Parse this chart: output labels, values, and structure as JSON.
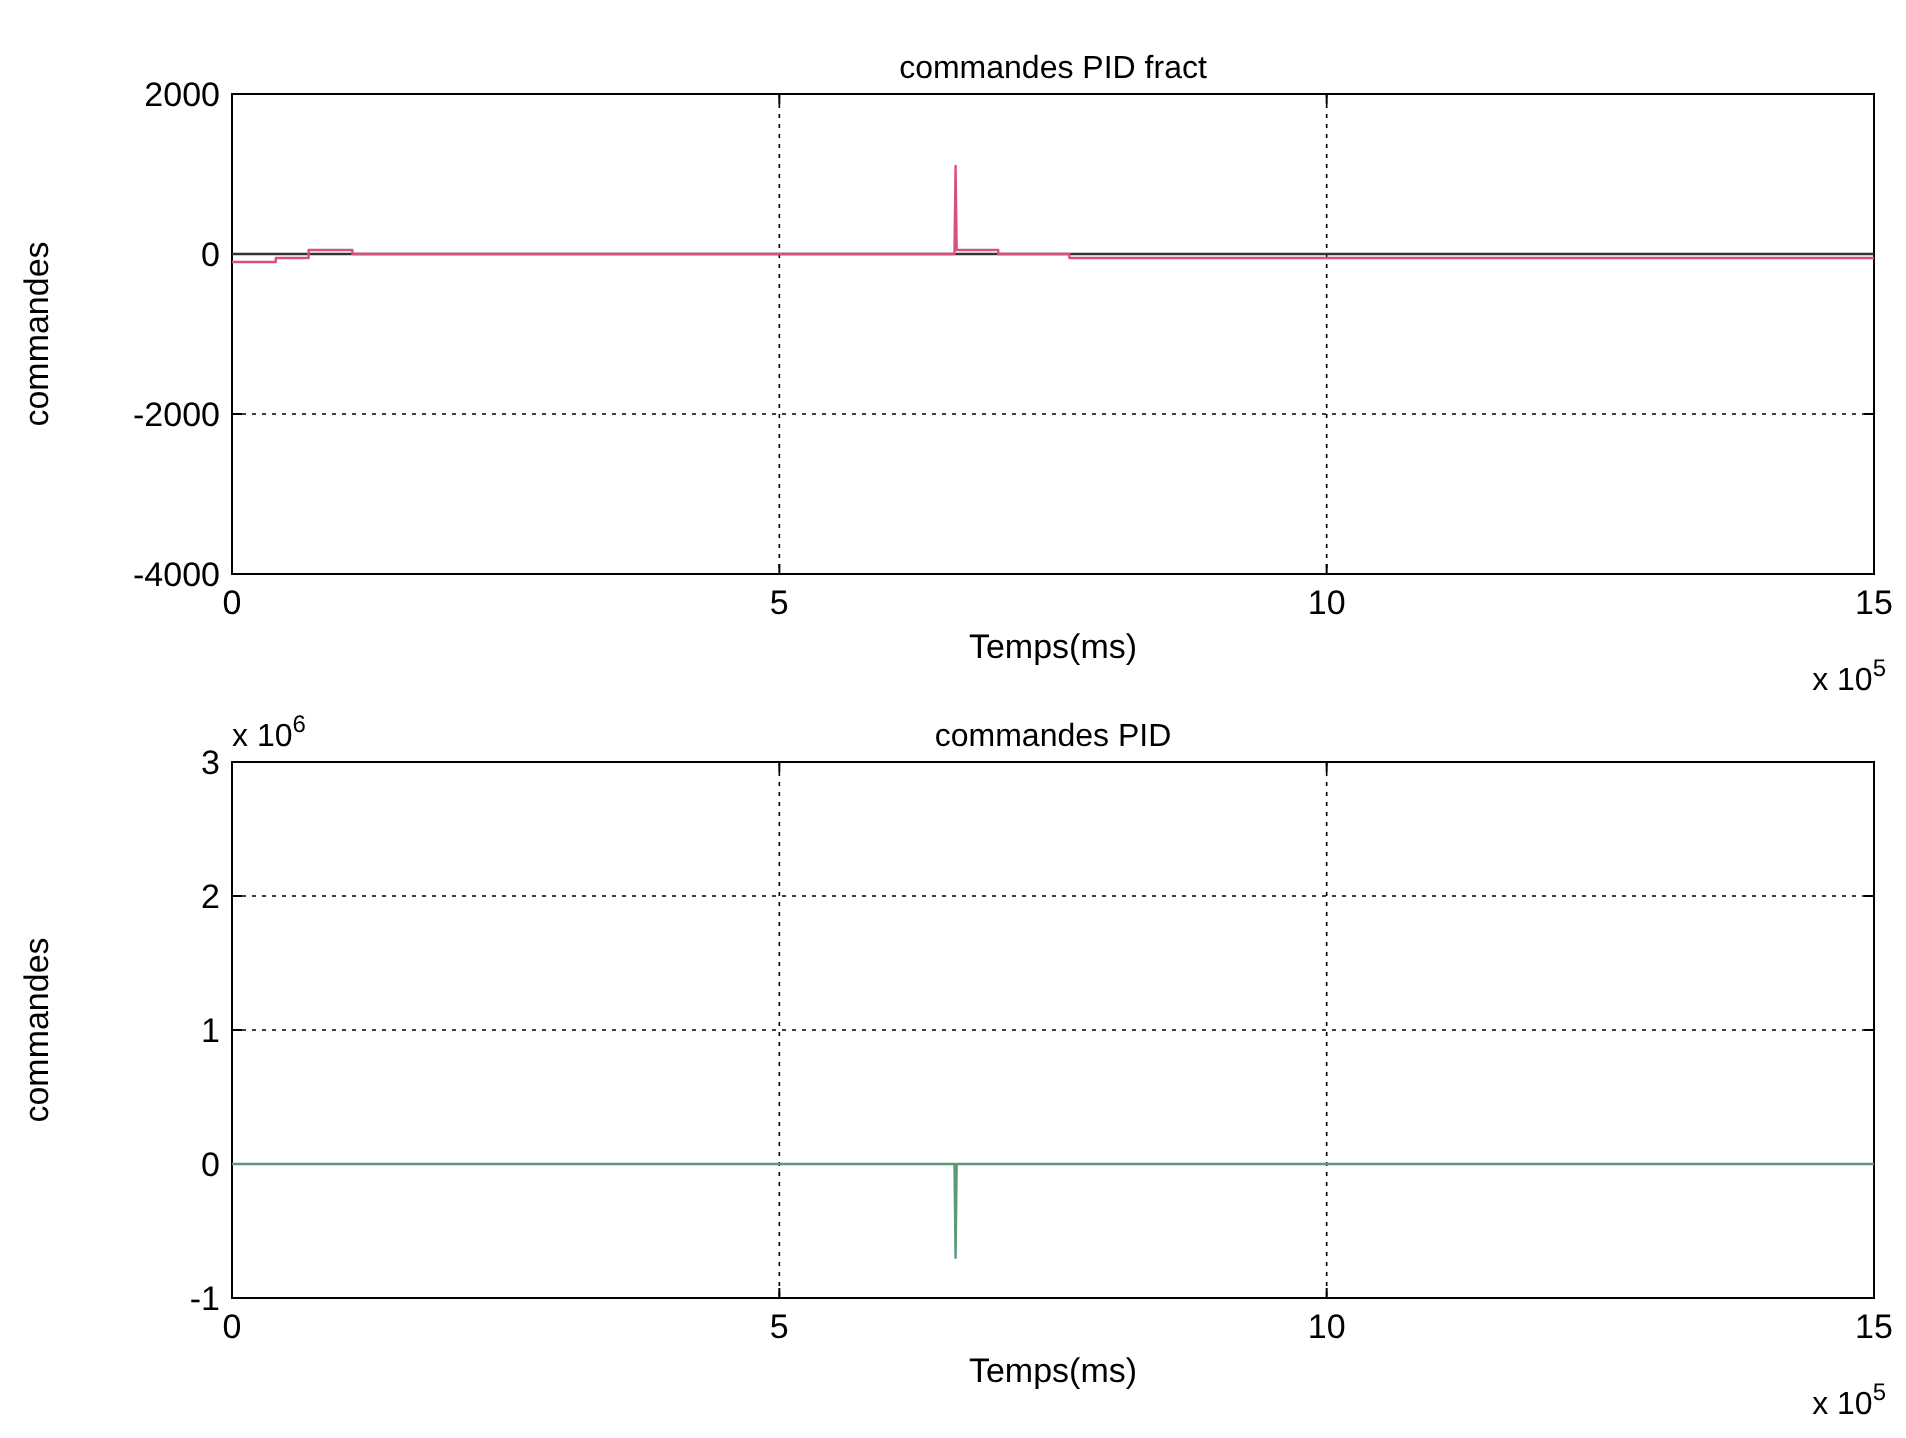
{
  "chart_data": [
    {
      "type": "line",
      "title": "commandes PID fract",
      "xlabel": "Temps(ms)",
      "ylabel": "commandes",
      "xlim": [
        0,
        15
      ],
      "xticks": [
        0,
        5,
        10,
        15
      ],
      "ylim": [
        -4000,
        2000
      ],
      "yticks": [
        -4000,
        -2000,
        0,
        2000
      ],
      "grid": true,
      "line_style": "solid",
      "annotations": [
        "x 10$^{5}$"
      ],
      "series": [
        {
          "color": "#333333",
          "x": [
            0,
            15
          ],
          "values": [
            0,
            0
          ]
        },
        {
          "color": "#d9507a",
          "x": [
            0,
            0.4,
            0.4,
            0.7,
            0.7,
            1.1,
            1.1,
            6.6,
            6.61,
            6.62,
            7.0,
            7.0,
            7.65,
            7.65,
            15
          ],
          "values": [
            -100,
            -100,
            -50,
            -50,
            50,
            50,
            0,
            0,
            1100,
            50,
            50,
            0,
            0,
            -50,
            -50
          ]
        }
      ]
    },
    {
      "type": "line",
      "title": "commandes PID",
      "xlabel": "Temps(ms)",
      "ylabel": "commandes",
      "xlim": [
        0,
        15
      ],
      "xticks": [
        0,
        5,
        10,
        15
      ],
      "ylim": [
        -1,
        3
      ],
      "yticks": [
        -1,
        0,
        1,
        2,
        3
      ],
      "grid": true,
      "line_style": "solid",
      "annotations": [
        "x 10$^{6}$",
        "x 10$^{5}$"
      ],
      "series": [
        {
          "color": "#5a9a7a",
          "x": [
            0,
            6.6,
            6.61,
            6.62,
            15
          ],
          "values": [
            0,
            0,
            -0.7,
            0,
            0
          ]
        }
      ]
    }
  ]
}
